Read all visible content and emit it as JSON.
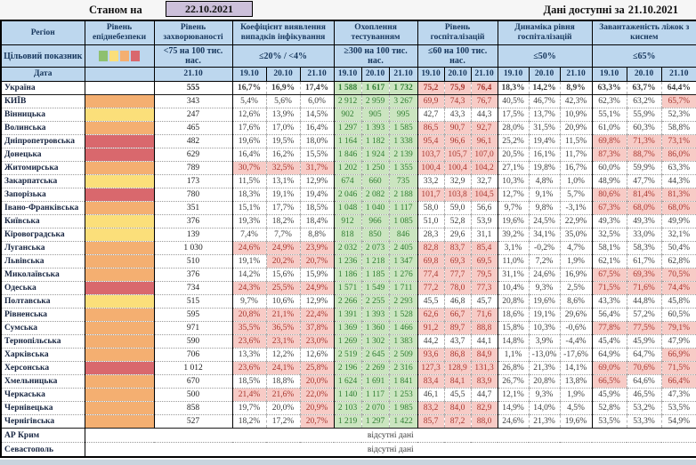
{
  "meta": {
    "as_of_label": "Станом на",
    "as_of_date": "22.10.2021",
    "available_label": "Дані доступні за",
    "available_date": "21.10.2021"
  },
  "colors": {
    "header_bg": "#BDD7EE",
    "header_text": "#17375D",
    "green_bg": "#CBE5C0",
    "green_text": "#2F7D31",
    "red_bg": "#F7CBC6",
    "red_text": "#A93830",
    "level_yellow": "#FBDF7A",
    "level_orange": "#F4AF71",
    "level_red": "#D9686D",
    "date_box_bg": "#CCC0DA"
  },
  "header": {
    "region": "Регіон",
    "target_label": "Цільовий показник",
    "date_label": "Дата",
    "legend_colors": [
      "#8EC06F",
      "#FBDF7A",
      "#F4AF71",
      "#D9686D"
    ],
    "legend_names": [
      "legend-green-square",
      "legend-yellow-square",
      "legend-orange-square",
      "legend-red-square"
    ],
    "groups": [
      {
        "title": "Рівень епіднебезпеки",
        "target": "",
        "dates": []
      },
      {
        "title": "Рівень захворюваності",
        "target": "<75 на 100 тис. нас.",
        "dates": [
          "21.10"
        ]
      },
      {
        "title": "Коефіцієнт виявлення випадків інфікування",
        "target": "≤20% / <4%",
        "dates": [
          "19.10",
          "20.10",
          "21.10"
        ]
      },
      {
        "title": "Охоплення тестуванням",
        "target": "≥300 на 100 тис. нас.",
        "dates": [
          "19.10",
          "20.10",
          "21.10"
        ]
      },
      {
        "title": "Рівень госпіталізацій",
        "target": "≤60 на 100 тис. нас.",
        "dates": [
          "19.10",
          "20.10",
          "21.10"
        ]
      },
      {
        "title": "Динаміка рівня госпіталізацій",
        "target": "≤50%",
        "dates": [
          "19.10",
          "20.10",
          "21.10"
        ]
      },
      {
        "title": "Завантаженість ліжок з киснем",
        "target": "≤65%",
        "dates": [
          "19.10",
          "20.10",
          "21.10"
        ]
      }
    ]
  },
  "rows": [
    {
      "region": "Україна",
      "level": "none",
      "bold": true,
      "inc": "555",
      "c": [
        "16,7%",
        "16,9%",
        "17,4%"
      ],
      "ch": [
        0,
        0,
        0
      ],
      "t": [
        "1 588",
        "1 617",
        "1 732"
      ],
      "h": [
        "75,2",
        "75,9",
        "76,4"
      ],
      "hh": [
        1,
        1,
        1
      ],
      "d": [
        "18,3%",
        "14,2%",
        "8,9%"
      ],
      "b": [
        "63,3%",
        "63,7%",
        "64,4%"
      ],
      "bh": [
        0,
        0,
        0
      ]
    },
    {
      "region": "КИЇВ",
      "level": "orange",
      "sep": true,
      "inc": "343",
      "c": [
        "5,4%",
        "5,6%",
        "6,0%"
      ],
      "ch": [
        0,
        0,
        0
      ],
      "t": [
        "2 912",
        "2 959",
        "3 267"
      ],
      "h": [
        "69,9",
        "74,3",
        "76,7"
      ],
      "hh": [
        1,
        1,
        1
      ],
      "d": [
        "40,5%",
        "46,7%",
        "42,3%"
      ],
      "b": [
        "62,3%",
        "63,2%",
        "65,7%"
      ],
      "bh": [
        0,
        0,
        1
      ]
    },
    {
      "region": "Вінницька",
      "level": "yellow",
      "inc": "247",
      "c": [
        "12,6%",
        "13,9%",
        "14,5%"
      ],
      "ch": [
        0,
        0,
        0
      ],
      "t": [
        "902",
        "905",
        "995"
      ],
      "h": [
        "42,7",
        "43,3",
        "44,3"
      ],
      "hh": [
        0,
        0,
        0
      ],
      "d": [
        "17,5%",
        "13,7%",
        "10,9%"
      ],
      "b": [
        "55,1%",
        "55,9%",
        "52,3%"
      ],
      "bh": [
        0,
        0,
        0
      ]
    },
    {
      "region": "Волинська",
      "level": "orange",
      "inc": "465",
      "c": [
        "17,6%",
        "17,0%",
        "16,4%"
      ],
      "ch": [
        0,
        0,
        0
      ],
      "t": [
        "1 297",
        "1 393",
        "1 585"
      ],
      "h": [
        "86,5",
        "90,7",
        "92,7"
      ],
      "hh": [
        1,
        1,
        1
      ],
      "d": [
        "28,0%",
        "31,5%",
        "20,9%"
      ],
      "b": [
        "61,0%",
        "60,3%",
        "58,8%"
      ],
      "bh": [
        0,
        0,
        0
      ]
    },
    {
      "region": "Дніпропетровська",
      "level": "red",
      "inc": "482",
      "c": [
        "19,6%",
        "19,5%",
        "18,0%"
      ],
      "ch": [
        0,
        0,
        0
      ],
      "t": [
        "1 164",
        "1 182",
        "1 338"
      ],
      "h": [
        "95,4",
        "96,6",
        "96,1"
      ],
      "hh": [
        1,
        1,
        1
      ],
      "d": [
        "25,2%",
        "19,4%",
        "11,5%"
      ],
      "b": [
        "69,8%",
        "71,3%",
        "73,1%"
      ],
      "bh": [
        1,
        1,
        1
      ]
    },
    {
      "region": "Донецька",
      "level": "red",
      "inc": "629",
      "c": [
        "16,4%",
        "16,2%",
        "15,5%"
      ],
      "ch": [
        0,
        0,
        0
      ],
      "t": [
        "1 846",
        "1 924",
        "2 139"
      ],
      "h": [
        "103,7",
        "105,7",
        "107,0"
      ],
      "hh": [
        1,
        1,
        1
      ],
      "d": [
        "20,5%",
        "16,1%",
        "11,7%"
      ],
      "b": [
        "87,3%",
        "88,7%",
        "86,0%"
      ],
      "bh": [
        1,
        1,
        1
      ]
    },
    {
      "region": "Житомирська",
      "level": "orange",
      "inc": "789",
      "c": [
        "30,7%",
        "32,5%",
        "31,7%"
      ],
      "ch": [
        1,
        1,
        1
      ],
      "t": [
        "1 202",
        "1 250",
        "1 355"
      ],
      "h": [
        "100,4",
        "100,4",
        "104,2"
      ],
      "hh": [
        1,
        1,
        1
      ],
      "d": [
        "27,1%",
        "19,8%",
        "16,7%"
      ],
      "b": [
        "60,0%",
        "59,9%",
        "63,3%"
      ],
      "bh": [
        0,
        0,
        0
      ]
    },
    {
      "region": "Закарпатська",
      "level": "yellow",
      "inc": "173",
      "c": [
        "11,5%",
        "13,1%",
        "12,9%"
      ],
      "ch": [
        0,
        0,
        0
      ],
      "t": [
        "674",
        "660",
        "735"
      ],
      "h": [
        "33,2",
        "32,9",
        "32,7"
      ],
      "hh": [
        0,
        0,
        0
      ],
      "d": [
        "10,3%",
        "4,8%",
        "1,0%"
      ],
      "b": [
        "48,9%",
        "47,7%",
        "44,3%"
      ],
      "bh": [
        0,
        0,
        0
      ]
    },
    {
      "region": "Запорізька",
      "level": "red",
      "inc": "780",
      "c": [
        "18,3%",
        "19,1%",
        "19,4%"
      ],
      "ch": [
        0,
        0,
        0
      ],
      "t": [
        "2 046",
        "2 082",
        "2 188"
      ],
      "h": [
        "101,7",
        "103,8",
        "104,5"
      ],
      "hh": [
        1,
        1,
        1
      ],
      "d": [
        "12,7%",
        "9,1%",
        "5,7%"
      ],
      "b": [
        "80,6%",
        "81,4%",
        "81,3%"
      ],
      "bh": [
        1,
        1,
        1
      ]
    },
    {
      "region": "Івано-Франківська",
      "level": "orange",
      "inc": "351",
      "c": [
        "15,1%",
        "17,7%",
        "18,5%"
      ],
      "ch": [
        0,
        0,
        0
      ],
      "t": [
        "1 048",
        "1 040",
        "1 117"
      ],
      "h": [
        "58,0",
        "59,0",
        "56,6"
      ],
      "hh": [
        0,
        0,
        0
      ],
      "d": [
        "9,7%",
        "9,8%",
        "-3,1%"
      ],
      "b": [
        "67,3%",
        "68,0%",
        "68,0%"
      ],
      "bh": [
        1,
        1,
        1
      ]
    },
    {
      "region": "Київська",
      "level": "yellow",
      "inc": "376",
      "c": [
        "19,3%",
        "18,2%",
        "18,4%"
      ],
      "ch": [
        0,
        0,
        0
      ],
      "t": [
        "912",
        "966",
        "1 085"
      ],
      "h": [
        "51,0",
        "52,8",
        "53,9"
      ],
      "hh": [
        0,
        0,
        0
      ],
      "d": [
        "19,6%",
        "24,5%",
        "22,9%"
      ],
      "b": [
        "49,3%",
        "49,3%",
        "49,9%"
      ],
      "bh": [
        0,
        0,
        0
      ]
    },
    {
      "region": "Кіровоградська",
      "level": "yellow",
      "inc": "139",
      "c": [
        "7,4%",
        "7,7%",
        "8,8%"
      ],
      "ch": [
        0,
        0,
        0
      ],
      "t": [
        "818",
        "850",
        "846"
      ],
      "h": [
        "28,3",
        "29,6",
        "31,1"
      ],
      "hh": [
        0,
        0,
        0
      ],
      "d": [
        "39,2%",
        "34,1%",
        "35,0%"
      ],
      "b": [
        "32,5%",
        "33,0%",
        "32,1%"
      ],
      "bh": [
        0,
        0,
        0
      ]
    },
    {
      "region": "Луганська",
      "level": "orange",
      "inc": "1 030",
      "c": [
        "24,6%",
        "24,9%",
        "23,9%"
      ],
      "ch": [
        1,
        1,
        1
      ],
      "t": [
        "2 032",
        "2 073",
        "2 405"
      ],
      "h": [
        "82,8",
        "83,7",
        "85,4"
      ],
      "hh": [
        1,
        1,
        1
      ],
      "d": [
        "3,1%",
        "-0,2%",
        "4,7%"
      ],
      "b": [
        "58,1%",
        "58,3%",
        "50,4%"
      ],
      "bh": [
        0,
        0,
        0
      ]
    },
    {
      "region": "Львівська",
      "level": "orange",
      "inc": "510",
      "c": [
        "19,1%",
        "20,2%",
        "20,7%"
      ],
      "ch": [
        0,
        1,
        1
      ],
      "t": [
        "1 236",
        "1 218",
        "1 347"
      ],
      "h": [
        "69,8",
        "69,3",
        "69,5"
      ],
      "hh": [
        1,
        1,
        1
      ],
      "d": [
        "11,0%",
        "7,2%",
        "1,9%"
      ],
      "b": [
        "62,1%",
        "61,7%",
        "62,8%"
      ],
      "bh": [
        0,
        0,
        0
      ]
    },
    {
      "region": "Миколаївська",
      "level": "orange",
      "inc": "376",
      "c": [
        "14,2%",
        "15,6%",
        "15,9%"
      ],
      "ch": [
        0,
        0,
        0
      ],
      "t": [
        "1 186",
        "1 185",
        "1 276"
      ],
      "h": [
        "77,4",
        "77,7",
        "79,5"
      ],
      "hh": [
        1,
        1,
        1
      ],
      "d": [
        "31,1%",
        "24,6%",
        "16,9%"
      ],
      "b": [
        "67,5%",
        "69,3%",
        "70,5%"
      ],
      "bh": [
        1,
        1,
        1
      ]
    },
    {
      "region": "Одеська",
      "level": "red",
      "inc": "734",
      "c": [
        "24,3%",
        "25,5%",
        "24,9%"
      ],
      "ch": [
        1,
        1,
        1
      ],
      "t": [
        "1 571",
        "1 549",
        "1 711"
      ],
      "h": [
        "77,2",
        "78,0",
        "77,3"
      ],
      "hh": [
        1,
        1,
        1
      ],
      "d": [
        "10,4%",
        "9,3%",
        "2,5%"
      ],
      "b": [
        "71,5%",
        "71,6%",
        "74,4%"
      ],
      "bh": [
        1,
        1,
        1
      ]
    },
    {
      "region": "Полтавська",
      "level": "yellow",
      "inc": "515",
      "c": [
        "9,7%",
        "10,6%",
        "12,9%"
      ],
      "ch": [
        0,
        0,
        0
      ],
      "t": [
        "2 266",
        "2 255",
        "2 293"
      ],
      "h": [
        "45,5",
        "46,8",
        "45,7"
      ],
      "hh": [
        0,
        0,
        0
      ],
      "d": [
        "20,8%",
        "19,6%",
        "8,6%"
      ],
      "b": [
        "43,3%",
        "44,8%",
        "45,8%"
      ],
      "bh": [
        0,
        0,
        0
      ]
    },
    {
      "region": "Рівненська",
      "level": "orange",
      "inc": "595",
      "c": [
        "20,8%",
        "21,1%",
        "22,4%"
      ],
      "ch": [
        1,
        1,
        1
      ],
      "t": [
        "1 391",
        "1 393",
        "1 528"
      ],
      "h": [
        "62,6",
        "66,7",
        "71,6"
      ],
      "hh": [
        1,
        1,
        1
      ],
      "d": [
        "18,6%",
        "19,1%",
        "29,6%"
      ],
      "b": [
        "56,4%",
        "57,2%",
        "60,5%"
      ],
      "bh": [
        0,
        0,
        0
      ]
    },
    {
      "region": "Сумська",
      "level": "orange",
      "inc": "971",
      "c": [
        "35,5%",
        "36,5%",
        "37,8%"
      ],
      "ch": [
        1,
        1,
        1
      ],
      "t": [
        "1 369",
        "1 360",
        "1 466"
      ],
      "h": [
        "91,2",
        "89,7",
        "88,8"
      ],
      "hh": [
        1,
        1,
        1
      ],
      "d": [
        "15,8%",
        "10,3%",
        "-0,6%"
      ],
      "b": [
        "77,8%",
        "77,5%",
        "79,1%"
      ],
      "bh": [
        1,
        1,
        1
      ]
    },
    {
      "region": "Тернопільська",
      "level": "orange",
      "inc": "590",
      "c": [
        "23,6%",
        "23,1%",
        "23,0%"
      ],
      "ch": [
        1,
        1,
        1
      ],
      "t": [
        "1 269",
        "1 302",
        "1 383"
      ],
      "h": [
        "44,2",
        "43,7",
        "44,1"
      ],
      "hh": [
        0,
        0,
        0
      ],
      "d": [
        "14,8%",
        "3,9%",
        "-4,4%"
      ],
      "b": [
        "45,4%",
        "45,9%",
        "47,9%"
      ],
      "bh": [
        0,
        0,
        0
      ]
    },
    {
      "region": "Харківська",
      "level": "orange",
      "inc": "706",
      "c": [
        "13,3%",
        "12,2%",
        "12,6%"
      ],
      "ch": [
        0,
        0,
        0
      ],
      "t": [
        "2 519",
        "2 645",
        "2 509"
      ],
      "h": [
        "93,6",
        "86,8",
        "84,9"
      ],
      "hh": [
        1,
        1,
        1
      ],
      "d": [
        "1,1%",
        "-13,0%",
        "-17,6%"
      ],
      "b": [
        "64,9%",
        "64,7%",
        "66,9%"
      ],
      "bh": [
        0,
        0,
        1
      ]
    },
    {
      "region": "Херсонська",
      "level": "red",
      "inc": "1 012",
      "c": [
        "23,6%",
        "24,1%",
        "25,8%"
      ],
      "ch": [
        1,
        1,
        1
      ],
      "t": [
        "2 196",
        "2 269",
        "2 316"
      ],
      "h": [
        "127,3",
        "128,9",
        "131,3"
      ],
      "hh": [
        1,
        1,
        1
      ],
      "d": [
        "26,8%",
        "21,3%",
        "14,1%"
      ],
      "b": [
        "69,0%",
        "70,6%",
        "71,5%"
      ],
      "bh": [
        1,
        1,
        1
      ]
    },
    {
      "region": "Хмельницька",
      "level": "orange",
      "inc": "670",
      "c": [
        "18,5%",
        "18,8%",
        "20,0%"
      ],
      "ch": [
        0,
        0,
        1
      ],
      "t": [
        "1 624",
        "1 691",
        "1 841"
      ],
      "h": [
        "83,4",
        "84,1",
        "83,9"
      ],
      "hh": [
        1,
        1,
        1
      ],
      "d": [
        "26,7%",
        "20,8%",
        "13,8%"
      ],
      "b": [
        "66,5%",
        "64,6%",
        "66,4%"
      ],
      "bh": [
        1,
        0,
        1
      ]
    },
    {
      "region": "Черкаська",
      "level": "orange",
      "inc": "500",
      "c": [
        "21,4%",
        "21,6%",
        "22,0%"
      ],
      "ch": [
        1,
        1,
        1
      ],
      "t": [
        "1 140",
        "1 117",
        "1 253"
      ],
      "h": [
        "46,1",
        "45,5",
        "44,7"
      ],
      "hh": [
        0,
        0,
        0
      ],
      "d": [
        "12,1%",
        "9,3%",
        "1,9%"
      ],
      "b": [
        "45,9%",
        "46,5%",
        "47,3%"
      ],
      "bh": [
        0,
        0,
        0
      ]
    },
    {
      "region": "Чернівецька",
      "level": "orange",
      "inc": "858",
      "c": [
        "19,7%",
        "20,0%",
        "20,9%"
      ],
      "ch": [
        0,
        0,
        1
      ],
      "t": [
        "2 103",
        "2 070",
        "1 985"
      ],
      "h": [
        "83,2",
        "84,0",
        "82,9"
      ],
      "hh": [
        1,
        1,
        1
      ],
      "d": [
        "14,9%",
        "14,0%",
        "4,5%"
      ],
      "b": [
        "52,8%",
        "53,2%",
        "53,5%"
      ],
      "bh": [
        0,
        0,
        0
      ]
    },
    {
      "region": "Чернігівська",
      "level": "orange",
      "inc": "527",
      "c": [
        "18,2%",
        "17,2%",
        "20,7%"
      ],
      "ch": [
        0,
        0,
        1
      ],
      "t": [
        "1 219",
        "1 297",
        "1 422"
      ],
      "h": [
        "85,7",
        "87,2",
        "88,0"
      ],
      "hh": [
        1,
        1,
        1
      ],
      "d": [
        "24,6%",
        "21,3%",
        "19,6%"
      ],
      "b": [
        "53,5%",
        "53,3%",
        "54,9%"
      ],
      "bh": [
        0,
        0,
        0
      ]
    }
  ],
  "no_data_rows": [
    {
      "region": "АР Крим",
      "text": "відсутні дані"
    },
    {
      "region": "Севастополь",
      "text": "відсутні дані"
    }
  ]
}
